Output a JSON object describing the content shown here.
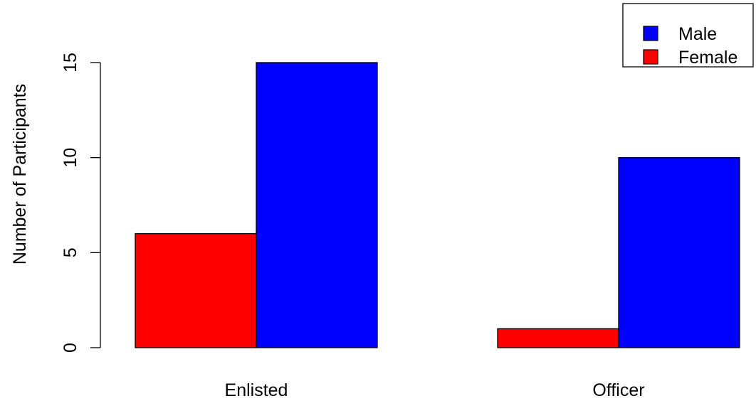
{
  "chart_data": {
    "type": "bar",
    "categories": [
      "Enlisted",
      "Officer"
    ],
    "series": [
      {
        "name": "Female",
        "color": "#ff0000",
        "values": [
          6,
          1
        ]
      },
      {
        "name": "Male",
        "color": "#0000ff",
        "values": [
          15,
          10
        ]
      }
    ],
    "ylabel": "Number of Participants",
    "yticks": [
      0,
      5,
      10,
      15
    ],
    "ylim": [
      0,
      15
    ],
    "legend": {
      "position": "top-right",
      "entries": [
        {
          "label": "Male",
          "color": "#0000ff"
        },
        {
          "label": "Female",
          "color": "#ff0000"
        }
      ]
    }
  }
}
